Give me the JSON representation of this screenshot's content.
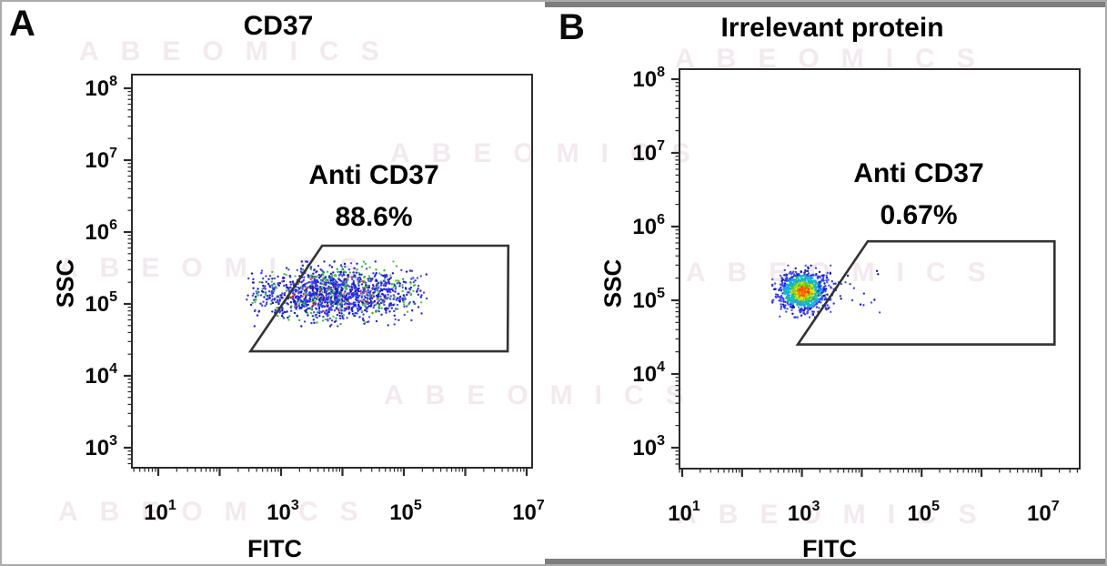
{
  "figure": {
    "background": "#ffffff",
    "border_color": "#ababab",
    "watermark_text": "ABEOMICS",
    "watermark_color": "#f3e9ef",
    "gray_bar_color": "#7d7d7d"
  },
  "panels": [
    {
      "letter": "A"
    },
    {
      "letter": "B"
    }
  ],
  "chart_data": [
    {
      "type": "scatter",
      "panel": "A",
      "title": "CD37",
      "xlabel": "FITC",
      "ylabel": "SSC",
      "x_scale": "log10",
      "y_scale": "log10",
      "xlim_log10": [
        0.57,
        7.09
      ],
      "ylim_log10": [
        2.72,
        8.19
      ],
      "x_major_ticks": [
        1,
        2,
        3,
        4,
        5,
        6,
        7
      ],
      "x_labeled_ticks": [
        1,
        3,
        5,
        7
      ],
      "y_major_ticks": [
        3,
        4,
        5,
        6,
        7,
        8
      ],
      "y_labeled_ticks": [
        3,
        4,
        5,
        6,
        7,
        8
      ],
      "grid": false,
      "frame_color": "#2b2b2b",
      "gate": {
        "label": "Anti CD37",
        "percent": "88.6%",
        "color": "#333333",
        "vertices_log10": [
          [
            3.67,
            5.81
          ],
          [
            6.7,
            5.81
          ],
          [
            6.69,
            4.34
          ],
          [
            2.5,
            4.34
          ]
        ]
      },
      "population": {
        "shape": "horizontal-band",
        "center_log10": [
          3.88,
          5.14
        ],
        "x_halfwidth_log10": 1.5,
        "y_sd_log10": 0.17,
        "n_events": 1500,
        "palette": {
          "blue": [
            "#2222ee",
            "#3a3aff",
            "#1515cc",
            "#4646ff"
          ],
          "green": [
            "#22bb22",
            "#33cc33",
            "#55cc22"
          ],
          "hot": [
            "#ee3300",
            "#ff7711",
            "#cc1100"
          ]
        },
        "fractions": {
          "hot": 0.07,
          "green": 0.16
        }
      }
    },
    {
      "type": "scatter",
      "panel": "B",
      "title": "Irrelevant protein",
      "xlabel": "FITC",
      "ylabel": "SSC",
      "x_scale": "log10",
      "y_scale": "log10",
      "xlim_log10": [
        0.95,
        7.64
      ],
      "ylim_log10": [
        2.72,
        8.14
      ],
      "x_major_ticks": [
        1,
        2,
        3,
        4,
        5,
        6,
        7
      ],
      "x_labeled_ticks": [
        1,
        3,
        5,
        7
      ],
      "y_major_ticks": [
        3,
        4,
        5,
        6,
        7,
        8
      ],
      "y_labeled_ticks": [
        3,
        4,
        5,
        6,
        7,
        8
      ],
      "grid": false,
      "frame_color": "#2b2b2b",
      "gate": {
        "label": "Anti CD37",
        "percent": "0.67%",
        "color": "#333333",
        "vertices_log10": [
          [
            4.1,
            5.8
          ],
          [
            7.22,
            5.8
          ],
          [
            7.22,
            4.4
          ],
          [
            2.93,
            4.4
          ]
        ]
      },
      "population": {
        "shape": "dense-blob",
        "center_log10": [
          3.02,
          5.12
        ],
        "sd_log10": [
          0.19,
          0.13
        ],
        "n_events": 1100,
        "tail_n": 40,
        "palette_by_density": [
          [
            "#ff3300",
            "#ff7700",
            "#ffaa00",
            "#ff5500"
          ],
          [
            "#aadd00",
            "#33cc33",
            "#ffdd00",
            "#55cc44"
          ],
          [
            "#00ccbb",
            "#11aaff",
            "#33bb66",
            "#2299ff"
          ],
          [
            "#2233ee",
            "#4455ff",
            "#1111bb",
            "#3a3aff"
          ]
        ]
      }
    }
  ]
}
